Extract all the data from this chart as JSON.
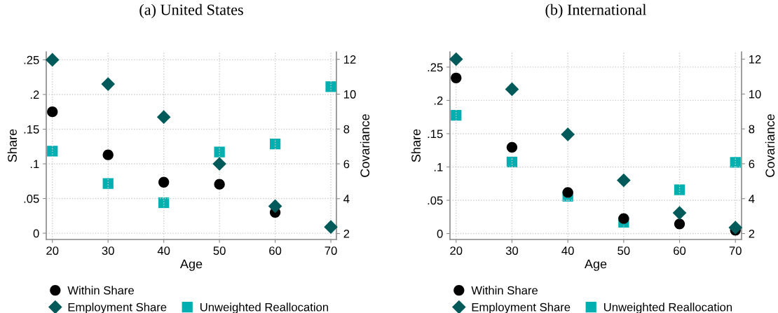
{
  "chart_data": [
    {
      "type": "scatter",
      "title": "(a) United States",
      "xlabel": "Age",
      "ylabel": "Share",
      "y2label": "Covariance",
      "x": [
        20,
        30,
        40,
        50,
        60,
        70
      ],
      "xlim": [
        18.9,
        71.0
      ],
      "xticks": [
        20,
        30,
        40,
        50,
        60,
        70
      ],
      "ylim": [
        -0.009,
        0.2615
      ],
      "yticks": [
        {
          "value": 0,
          "label": "0"
        },
        {
          "value": 0.05,
          "label": ".05"
        },
        {
          "value": 0.1,
          "label": ".1"
        },
        {
          "value": 0.15,
          "label": ".15"
        },
        {
          "value": 0.2,
          "label": ".2"
        },
        {
          "value": 0.25,
          "label": ".25"
        }
      ],
      "y2lim": [
        1.66,
        12.43
      ],
      "y2ticks": [
        2,
        4,
        6,
        8,
        10,
        12
      ],
      "grid": true,
      "legend": "bottom",
      "series": [
        {
          "name": "Within Share",
          "color": "#000000",
          "marker": "circle",
          "values": [
            0.175,
            0.113,
            0.0735,
            0.0706,
            0.03,
            null
          ]
        },
        {
          "name": "Employment Share",
          "color": "#005a5a",
          "marker": "diamond",
          "values": [
            0.25,
            0.215,
            0.1675,
            0.1,
            0.039,
            0.009
          ]
        },
        {
          "name": "Unweighted Reallocation",
          "color": "#00b0b0",
          "marker": "square",
          "axis": "y2",
          "values": [
            6.73,
            4.87,
            3.77,
            6.68,
            7.14,
            10.43
          ]
        }
      ]
    },
    {
      "type": "scatter",
      "title": "(b) International",
      "xlabel": "Age",
      "ylabel": "Share",
      "y2label": "Covariance",
      "x": [
        20,
        30,
        40,
        50,
        60,
        70
      ],
      "xlim": [
        18.9,
        71.1
      ],
      "xticks": [
        20,
        30,
        40,
        50,
        60,
        70
      ],
      "ylim": [
        -0.0089,
        0.273
      ],
      "yticks": [
        {
          "value": 0,
          "label": "0"
        },
        {
          "value": 0.05,
          "label": ".05"
        },
        {
          "value": 0.1,
          "label": ".1"
        },
        {
          "value": 0.15,
          "label": ".15"
        },
        {
          "value": 0.2,
          "label": ".2"
        },
        {
          "value": 0.25,
          "label": ".25"
        }
      ],
      "y2lim": [
        1.66,
        12.42
      ],
      "y2ticks": [
        2,
        4,
        6,
        8,
        10,
        12
      ],
      "grid": true,
      "legend": "bottom",
      "series": [
        {
          "name": "Within Share",
          "color": "#000000",
          "marker": "circle",
          "values": [
            0.2338,
            0.1296,
            0.0617,
            0.0225,
            0.0144,
            0.005
          ]
        },
        {
          "name": "Employment Share",
          "color": "#005a5a",
          "marker": "diamond",
          "values": [
            0.262,
            0.2168,
            0.149,
            0.08,
            0.031,
            0.009
          ]
        },
        {
          "name": "Unweighted Reallocation",
          "color": "#00b0b0",
          "marker": "square",
          "axis": "y2",
          "values": [
            8.78,
            6.1,
            4.14,
            2.65,
            4.51,
            6.08
          ]
        }
      ]
    }
  ]
}
